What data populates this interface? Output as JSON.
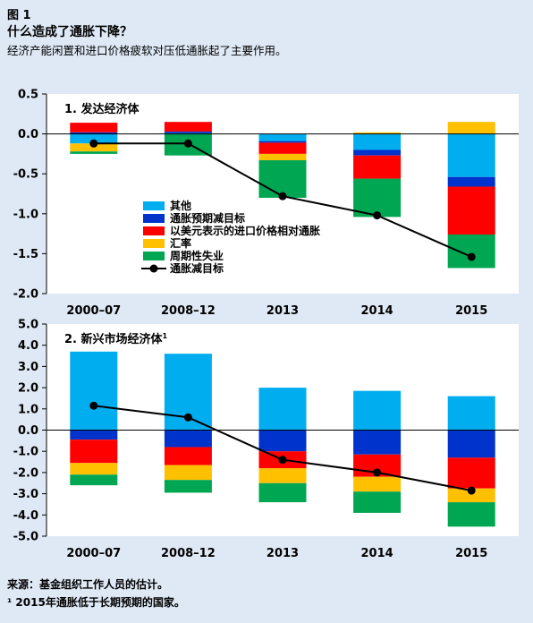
{
  "figure": {
    "label": "图 1",
    "title": "什么造成了通胀下降？",
    "subtitle": "经济产能闲置和进口价格疲软对压低通胀起了主要作用。"
  },
  "footnotes": {
    "source": "来源：基金组织工作人员的估计。",
    "note": "¹ 2015年通胀低于长期预期的国家。"
  },
  "colors": {
    "other": "#00aeef",
    "expectations": "#0033cc",
    "import_prices": "#ff0000",
    "exchange_rate": "#ffc000",
    "slack": "#00a651",
    "line": "#000000"
  },
  "chart_data": [
    {
      "type": "bar",
      "stacked": true,
      "title": "1. 发达经济体",
      "categories": [
        "2000–07",
        "2008–12",
        "2013",
        "2014",
        "2015"
      ],
      "ylim": [
        -2.0,
        0.5
      ],
      "yticks": [
        0.5,
        0.0,
        -0.5,
        -1.0,
        -1.5,
        -2.0
      ],
      "ytick_labels": [
        "0.5",
        "0.0",
        "-0.5",
        "-1.0",
        "-1.5",
        "-2.0"
      ],
      "legend": [
        "其他",
        "通胀预期减目标",
        "以美元表示的进口价格相对通胀",
        "汇率",
        "周期性失业",
        "通胀减目标"
      ],
      "series": [
        {
          "name": "其他",
          "key": "other",
          "values": [
            -0.12,
            0.01,
            -0.09,
            -0.2,
            -0.54
          ]
        },
        {
          "name": "通胀预期减目标",
          "key": "expectations",
          "values": [
            0.02,
            0.02,
            -0.02,
            -0.07,
            -0.12
          ]
        },
        {
          "name": "以美元表示的进口价格相对通胀",
          "key": "import_prices",
          "values": [
            0.12,
            0.12,
            -0.14,
            -0.29,
            -0.6
          ]
        },
        {
          "name": "汇率",
          "key": "exchange_rate",
          "values": [
            -0.1,
            0.0,
            -0.08,
            0.02,
            0.15
          ]
        },
        {
          "name": "周期性失业",
          "key": "slack",
          "values": [
            -0.03,
            -0.27,
            -0.47,
            -0.48,
            -0.42
          ]
        }
      ],
      "line": {
        "name": "通胀减目标",
        "values": [
          -0.12,
          -0.12,
          -0.78,
          -1.02,
          -1.54
        ]
      }
    },
    {
      "type": "bar",
      "stacked": true,
      "title": "2. 新兴市场经济体",
      "title_sup": "1",
      "categories": [
        "2000–07",
        "2008–12",
        "2013",
        "2014",
        "2015"
      ],
      "ylim": [
        -5.0,
        5.0
      ],
      "yticks": [
        5.0,
        4.0,
        3.0,
        2.0,
        1.0,
        0.0,
        -1.0,
        -2.0,
        -3.0,
        -4.0,
        -5.0
      ],
      "ytick_labels": [
        "5.0",
        "4.0",
        "3.0",
        "2.0",
        "1.0",
        "0.0",
        "-1.0",
        "-2.0",
        "-3.0",
        "-4.0",
        "-5.0"
      ],
      "series": [
        {
          "name": "其他",
          "key": "other",
          "values": [
            3.7,
            3.6,
            2.0,
            1.85,
            1.6
          ]
        },
        {
          "name": "通胀预期减目标",
          "key": "expectations",
          "values": [
            -0.45,
            -0.8,
            -1.0,
            -1.15,
            -1.3
          ]
        },
        {
          "name": "以美元表示的进口价格相对通胀",
          "key": "import_prices",
          "values": [
            -1.1,
            -0.85,
            -0.8,
            -1.05,
            -1.45
          ]
        },
        {
          "name": "汇率",
          "key": "exchange_rate",
          "values": [
            -0.55,
            -0.7,
            -0.7,
            -0.7,
            -0.65
          ]
        },
        {
          "name": "周期性失业",
          "key": "slack",
          "values": [
            -0.5,
            -0.6,
            -0.9,
            -1.0,
            -1.15
          ]
        }
      ],
      "line": {
        "name": "通胀减目标",
        "values": [
          1.15,
          0.6,
          -1.4,
          -2.0,
          -2.85
        ]
      }
    }
  ]
}
